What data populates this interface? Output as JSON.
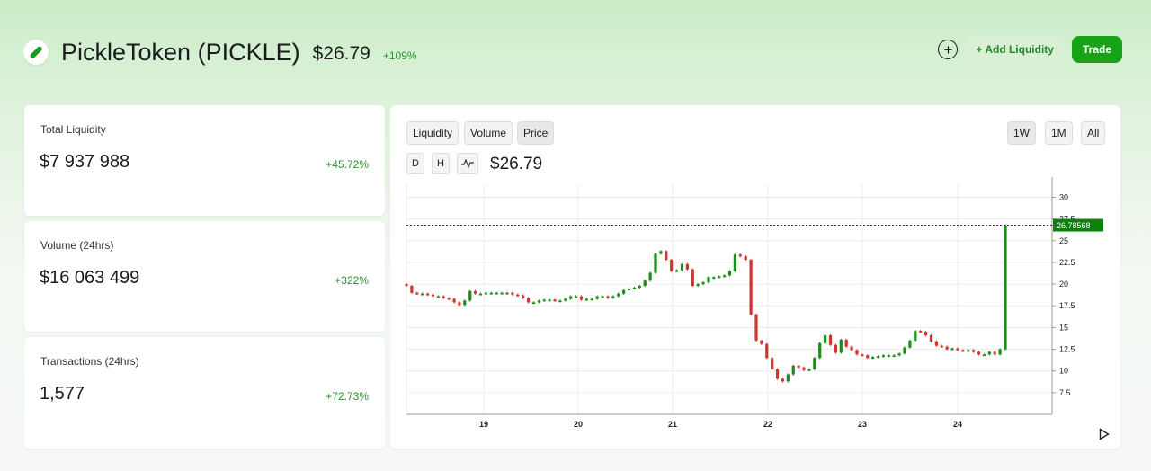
{
  "header": {
    "title": "PickleToken (PICKLE)",
    "price": "$26.79",
    "change": "+109%",
    "logo_icon": "pickle-icon"
  },
  "actions": {
    "add_liquidity_label": "+ Add Liquidity",
    "trade_label": "Trade",
    "plus_icon": "circle-plus-icon"
  },
  "stats": [
    {
      "label": "Total Liquidity",
      "value": "$7 937 988",
      "change": "+45.72%"
    },
    {
      "label": "Volume (24hrs)",
      "value": "$16 063 499",
      "change": "+322%"
    },
    {
      "label": "Transactions (24hrs)",
      "value": "1,577",
      "change": "+72.73%"
    }
  ],
  "chart_panel": {
    "tabs": [
      "Liquidity",
      "Volume",
      "Price"
    ],
    "active_tab": "Price",
    "ranges": [
      "1W",
      "1M",
      "All"
    ],
    "active_range": "1W",
    "interval_buttons": [
      "D",
      "H"
    ],
    "line_icon": "line-chart-icon",
    "current_price": "$26.79",
    "play_icon": "play-icon"
  },
  "colors": {
    "up": "#1a8f1a",
    "down": "#d0352f",
    "accent": "#17a317"
  },
  "chart_data": {
    "type": "candlestick",
    "x_ticks": [
      "19",
      "20",
      "21",
      "22",
      "23",
      "24"
    ],
    "y_ticks": [
      "7.5",
      "10",
      "12.5",
      "15",
      "17.5",
      "20",
      "22.5",
      "25",
      "27.5",
      "30"
    ],
    "ylim": [
      5,
      31.5
    ],
    "last_price_label": "26.78568",
    "last_price": 26.78568,
    "grid": true,
    "closes": [
      19.8,
      19,
      18.9,
      18.9,
      18.8,
      18.6,
      18.6,
      18.4,
      18.3,
      17.9,
      17.6,
      18.1,
      19.2,
      18.9,
      18.9,
      19.0,
      19.0,
      19.0,
      19.0,
      19.0,
      18.8,
      18.7,
      18.4,
      17.9,
      17.9,
      18.1,
      18.2,
      18.2,
      18.1,
      18.1,
      18.3,
      18.6,
      18.6,
      18.2,
      18.3,
      18.3,
      18.6,
      18.6,
      18.4,
      18.6,
      18.9,
      19.3,
      19.5,
      19.6,
      19.8,
      20.4,
      21.3,
      23.5,
      23.8,
      22.8,
      21.5,
      21.6,
      22.3,
      21.7,
      19.8,
      20.0,
      20.2,
      20.8,
      20.8,
      20.9,
      21.0,
      21.5,
      23.4,
      23.2,
      22.8,
      16.5,
      13.5,
      13.1,
      11.5,
      10.2,
      9.1,
      8.8,
      9.6,
      10.6,
      10.4,
      10.1,
      10.2,
      11.5,
      13.2,
      14.1,
      13.0,
      12.1,
      13.6,
      12.8,
      12.4,
      11.9,
      11.8,
      11.5,
      11.6,
      11.7,
      11.8,
      11.8,
      11.8,
      12.0,
      12.7,
      13.5,
      14.6,
      14.5,
      14.1,
      13.4,
      12.9,
      12.8,
      12.5,
      12.6,
      12.4,
      12.3,
      12.4,
      12.2,
      11.9,
      11.9,
      12.2,
      11.9,
      12.5,
      26.78568
    ]
  }
}
